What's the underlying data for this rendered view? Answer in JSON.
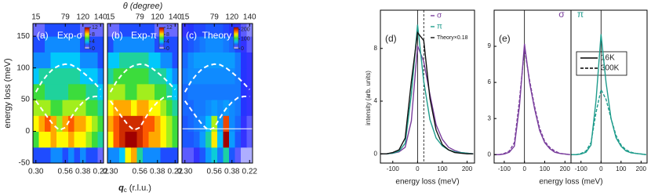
{
  "chart_data": [
    {
      "type": "heatmap",
      "panel": "(a)",
      "title": "Exp-σ",
      "ylabel": "energy loss (meV)",
      "categories": [
        "0.30",
        null,
        null,
        null,
        null,
        "0.56",
        null,
        null,
        "0.38",
        null,
        null,
        "0.22"
      ],
      "x2categories": [
        15,
        null,
        null,
        null,
        null,
        79,
        null,
        null,
        120,
        null,
        null,
        140
      ],
      "ylim": [
        -50,
        170
      ],
      "yticks": [
        -50,
        0,
        50,
        100,
        150
      ],
      "ybins": [
        -50,
        -25,
        0,
        25,
        50,
        75,
        100,
        125,
        150,
        170
      ],
      "zlim": [
        0,
        12
      ],
      "zticks": [
        0,
        4,
        8,
        12
      ],
      "z": [
        [
          2,
          2,
          2,
          3,
          3,
          2,
          3,
          2,
          3,
          2,
          2,
          1
        ],
        [
          6,
          8,
          8,
          9,
          8,
          8,
          9,
          8,
          8,
          7,
          6,
          5
        ],
        [
          8,
          9,
          10,
          9,
          7,
          9,
          10,
          9,
          9,
          8,
          7,
          6
        ],
        [
          7,
          7,
          7,
          6,
          6,
          7,
          7,
          7,
          7,
          6,
          6,
          5
        ],
        [
          6,
          6,
          5,
          5,
          5,
          5,
          6,
          6,
          6,
          5,
          5,
          4
        ],
        [
          4,
          5,
          5,
          5,
          5,
          5,
          5,
          5,
          4,
          4,
          4,
          3
        ],
        [
          3,
          3,
          3,
          4,
          4,
          4,
          4,
          4,
          3,
          3,
          3,
          2
        ],
        [
          2,
          2,
          3,
          3,
          3,
          3,
          3,
          3,
          2,
          2,
          2,
          2
        ],
        [
          1,
          1,
          2,
          2,
          2,
          2,
          2,
          2,
          1,
          1,
          1,
          1
        ]
      ],
      "series": [
        {
          "color": "#ffffff",
          "values": [
            62,
            78,
            90,
            99,
            104,
            106,
            105,
            100,
            93,
            85,
            76,
            66
          ]
        },
        {
          "color": "#ffffff",
          "values": [
            48,
            35,
            22,
            10,
            2,
            6,
            22,
            36,
            46,
            53,
            55,
            55
          ]
        }
      ]
    },
    {
      "type": "heatmap",
      "panel": "(b)",
      "title": "Exp-π",
      "xlabel": {
        "symbol": "q",
        "sub": "c",
        "unit": "(r.l.u.)"
      },
      "x2label": "θ (degree)",
      "categories": [
        "0.30",
        null,
        null,
        null,
        null,
        "0.56",
        null,
        null,
        "0.38",
        null,
        null,
        "0.22"
      ],
      "x2categories": [
        15,
        null,
        null,
        null,
        null,
        79,
        null,
        null,
        120,
        null,
        null,
        140
      ],
      "ylim": [
        -50,
        170
      ],
      "ybins": [
        -50,
        -25,
        0,
        25,
        50,
        75,
        100,
        125,
        150,
        170
      ],
      "zlim": [
        0,
        12
      ],
      "zticks": [
        0,
        4,
        8,
        12
      ],
      "z": [
        [
          3,
          3,
          4,
          8,
          9,
          5,
          3,
          3,
          3,
          2,
          2,
          2
        ],
        [
          8,
          10,
          11,
          12,
          12,
          11,
          10,
          9,
          9,
          8,
          7,
          6
        ],
        [
          9,
          10,
          11,
          11,
          11,
          11,
          10,
          10,
          9,
          8,
          7,
          6
        ],
        [
          8,
          9,
          9,
          9,
          8,
          9,
          9,
          8,
          8,
          7,
          6,
          5
        ],
        [
          7,
          7,
          7,
          6,
          6,
          7,
          7,
          7,
          6,
          6,
          5,
          4
        ],
        [
          5,
          6,
          6,
          6,
          6,
          6,
          6,
          5,
          5,
          5,
          4,
          3
        ],
        [
          4,
          4,
          5,
          5,
          5,
          5,
          5,
          4,
          4,
          3,
          3,
          2
        ],
        [
          2,
          3,
          3,
          3,
          3,
          3,
          3,
          3,
          2,
          2,
          2,
          2
        ],
        [
          1,
          1,
          2,
          2,
          2,
          2,
          2,
          2,
          1,
          1,
          1,
          1
        ]
      ],
      "series": [
        {
          "color": "#ffffff",
          "values": [
            62,
            78,
            90,
            99,
            104,
            106,
            105,
            100,
            93,
            85,
            76,
            66
          ]
        },
        {
          "color": "#ffffff",
          "values": [
            48,
            35,
            22,
            10,
            2,
            6,
            22,
            36,
            46,
            53,
            55,
            55
          ]
        }
      ]
    },
    {
      "type": "heatmap",
      "panel": "(c)",
      "title": "Theory",
      "categories": [
        "0.30",
        null,
        null,
        null,
        null,
        "0.56",
        null,
        null,
        "0.38",
        null,
        null,
        "0.22"
      ],
      "x2categories": [
        15,
        null,
        null,
        null,
        null,
        79,
        null,
        null,
        120,
        null,
        null,
        140
      ],
      "ylim": [
        -50,
        170
      ],
      "ybins": [
        -50,
        -25,
        0,
        25,
        50,
        75,
        100,
        125,
        150,
        170
      ],
      "hline": 4,
      "zlim": [
        0,
        220
      ],
      "zticks": [
        0,
        100,
        200
      ],
      "z": [
        [
          20,
          20,
          25,
          40,
          60,
          80,
          50,
          90,
          40,
          20,
          10,
          10
        ],
        [
          40,
          40,
          45,
          60,
          90,
          150,
          70,
          220,
          60,
          40,
          25,
          20
        ],
        [
          40,
          45,
          50,
          55,
          70,
          130,
          60,
          190,
          55,
          45,
          25,
          20
        ],
        [
          45,
          45,
          50,
          50,
          55,
          60,
          55,
          60,
          55,
          50,
          30,
          25
        ],
        [
          45,
          50,
          50,
          50,
          50,
          50,
          50,
          50,
          50,
          50,
          30,
          25
        ],
        [
          50,
          55,
          55,
          55,
          55,
          55,
          55,
          55,
          55,
          50,
          30,
          25
        ],
        [
          45,
          55,
          60,
          60,
          60,
          60,
          60,
          60,
          60,
          50,
          30,
          25
        ],
        [
          35,
          40,
          45,
          50,
          55,
          55,
          55,
          50,
          45,
          35,
          25,
          20
        ],
        [
          25,
          30,
          35,
          35,
          40,
          40,
          40,
          35,
          30,
          25,
          20,
          15
        ]
      ],
      "series": [
        {
          "color": "#ffffff",
          "values": [
            62,
            78,
            90,
            99,
            104,
            106,
            105,
            100,
            93,
            85,
            76,
            66
          ]
        },
        {
          "color": "#ffffff",
          "values": [
            48,
            35,
            22,
            10,
            2,
            6,
            22,
            36,
            46,
            53,
            55,
            55
          ]
        }
      ]
    },
    {
      "type": "line",
      "panel": "(d)",
      "ylabel": "intensity (arb. units)",
      "xlabel": "energy loss (meV)",
      "x": [
        -150,
        -125,
        -100,
        -75,
        -50,
        -25,
        0,
        25,
        50,
        75,
        100,
        125,
        150,
        175,
        200,
        225
      ],
      "xlim": [
        -150,
        230
      ],
      "xticks": [
        -100,
        0,
        100,
        200
      ],
      "ylim": [
        -0.7,
        10.9
      ],
      "yticks": [
        0,
        4,
        8
      ],
      "vlines": [
        0,
        25
      ],
      "series": [
        {
          "name": "σ",
          "color": "#7a3f9d",
          "values": [
            0,
            0,
            0.05,
            0.15,
            0.5,
            2.5,
            8.2,
            7.0,
            4.5,
            2.2,
            1.1,
            0.5,
            0.25,
            0.1,
            0.05,
            0
          ]
        },
        {
          "name": "π",
          "color": "#1f9c8c",
          "values": [
            0,
            0,
            0.05,
            0.2,
            0.8,
            4.5,
            9.8,
            5.5,
            2.6,
            1.2,
            0.6,
            0.3,
            0.15,
            0.1,
            0.05,
            0
          ]
        },
        {
          "name": "Theory×0.18",
          "color": "#111111",
          "values": [
            0,
            0,
            0.1,
            0.3,
            1.2,
            5.5,
            9.2,
            8.6,
            4.2,
            1.8,
            0.7,
            0.3,
            0.1,
            0.05,
            0,
            0
          ]
        }
      ]
    },
    {
      "type": "line",
      "panel": "(e)",
      "label": "σ",
      "xlabel": "energy loss (meV)",
      "x": [
        -150,
        -125,
        -100,
        -75,
        -50,
        -25,
        0,
        25,
        50,
        75,
        100,
        125,
        150,
        175,
        200,
        225
      ],
      "xlim": [
        -150,
        230
      ],
      "xticks": [
        -100,
        0,
        100,
        200
      ],
      "ylim": [
        -0.7,
        12
      ],
      "yticks": [
        0,
        3,
        6,
        9
      ],
      "vlines": [
        0
      ],
      "series": [
        {
          "name": "16K",
          "color": "#7a3f9d",
          "dash": false,
          "values": [
            0,
            0,
            0.05,
            0.2,
            0.7,
            4.0,
            9.2,
            6.0,
            3.8,
            2.0,
            1.0,
            0.5,
            0.2,
            0.1,
            0.05,
            0
          ]
        },
        {
          "name": "300K",
          "color": "#7a3f9d",
          "dash": true,
          "values": [
            0,
            0,
            0.1,
            0.3,
            1.0,
            4.5,
            8.8,
            6.2,
            4.0,
            2.2,
            1.1,
            0.6,
            0.3,
            0.1,
            0.05,
            0
          ]
        }
      ]
    },
    {
      "type": "line",
      "label": "π",
      "x": [
        -150,
        -125,
        -100,
        -75,
        -50,
        -25,
        0,
        25,
        50,
        75,
        100,
        125,
        150,
        175,
        200,
        225
      ],
      "xlim": [
        -150,
        230
      ],
      "xticks": [
        -100,
        0,
        100,
        200
      ],
      "ylim": [
        -0.7,
        12
      ],
      "vlines": [
        0
      ],
      "series": [
        {
          "color": "#1f9c8c",
          "dash": false,
          "values": [
            0,
            0,
            0.05,
            0.2,
            0.8,
            4.5,
            10.0,
            6.0,
            3.0,
            1.4,
            0.7,
            0.3,
            0.15,
            0.1,
            0.05,
            0
          ]
        },
        {
          "color": "#1f9c8c",
          "dash": true,
          "values": [
            0,
            0,
            0.1,
            0.3,
            1.0,
            3.5,
            5.4,
            4.6,
            3.0,
            1.6,
            0.8,
            0.4,
            0.2,
            0.1,
            0.05,
            0
          ]
        }
      ]
    }
  ]
}
